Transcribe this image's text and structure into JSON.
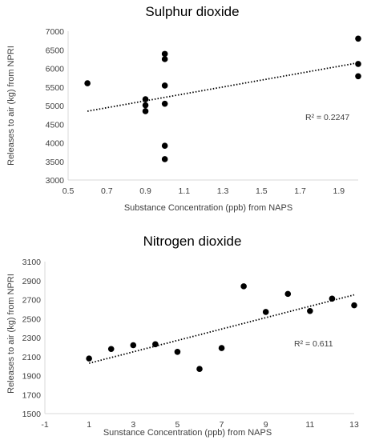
{
  "chart_data": [
    {
      "type": "scatter",
      "title": "Sulphur dioxide",
      "xlabel": "Substance Concentration (ppb) from NAPS",
      "ylabel": "Releases to air (kg) from NPRI",
      "xlim": [
        0.5,
        2.0
      ],
      "ylim": [
        3000,
        7000
      ],
      "xticks": [
        "0.5",
        "0.7",
        "0.9",
        "1.1",
        "1.3",
        "1.5",
        "1.7",
        "1.9"
      ],
      "yticks": [
        "3000",
        "3500",
        "4000",
        "4500",
        "5000",
        "5500",
        "6000",
        "6500",
        "7000"
      ],
      "r2_label": "R² = 0.2247",
      "points": [
        {
          "x": 0.6,
          "y": 5600
        },
        {
          "x": 0.9,
          "y": 5170
        },
        {
          "x": 0.9,
          "y": 5010
        },
        {
          "x": 0.9,
          "y": 4850
        },
        {
          "x": 1.0,
          "y": 6390
        },
        {
          "x": 1.0,
          "y": 6250
        },
        {
          "x": 1.0,
          "y": 5540
        },
        {
          "x": 1.0,
          "y": 5050
        },
        {
          "x": 1.0,
          "y": 3920
        },
        {
          "x": 1.0,
          "y": 3560
        },
        {
          "x": 2.0,
          "y": 6800
        },
        {
          "x": 2.0,
          "y": 6120
        },
        {
          "x": 2.0,
          "y": 5790
        }
      ],
      "trendline": {
        "x": [
          0.6,
          2.0
        ],
        "y": [
          4850,
          6150
        ]
      },
      "grid": false,
      "marker_color": "#000000"
    },
    {
      "type": "scatter",
      "title": "Nitrogen dioxide",
      "xlabel": "Sunstance Concentration (ppb) from NAPS",
      "ylabel": "Releases to air (kg) from NPRI",
      "xlim": [
        -1,
        13
      ],
      "ylim": [
        1500,
        3100
      ],
      "xticks": [
        "-1",
        "1",
        "3",
        "5",
        "7",
        "9",
        "11",
        "13"
      ],
      "yticks": [
        "1500",
        "1700",
        "1900",
        "2100",
        "2300",
        "2500",
        "2700",
        "2900",
        "3100"
      ],
      "r2_label": "R² = 0.611",
      "points": [
        {
          "x": 1,
          "y": 2080
        },
        {
          "x": 2,
          "y": 2180
        },
        {
          "x": 3,
          "y": 2220
        },
        {
          "x": 4,
          "y": 2230
        },
        {
          "x": 5,
          "y": 2150
        },
        {
          "x": 6,
          "y": 1970
        },
        {
          "x": 7,
          "y": 2190
        },
        {
          "x": 8,
          "y": 2840
        },
        {
          "x": 9,
          "y": 2570
        },
        {
          "x": 10,
          "y": 2760
        },
        {
          "x": 11,
          "y": 2580
        },
        {
          "x": 12,
          "y": 2710
        },
        {
          "x": 13,
          "y": 2640
        }
      ],
      "trendline": {
        "x": [
          1,
          13
        ],
        "y": [
          2030,
          2750
        ]
      },
      "grid": false,
      "marker_color": "#000000"
    }
  ]
}
